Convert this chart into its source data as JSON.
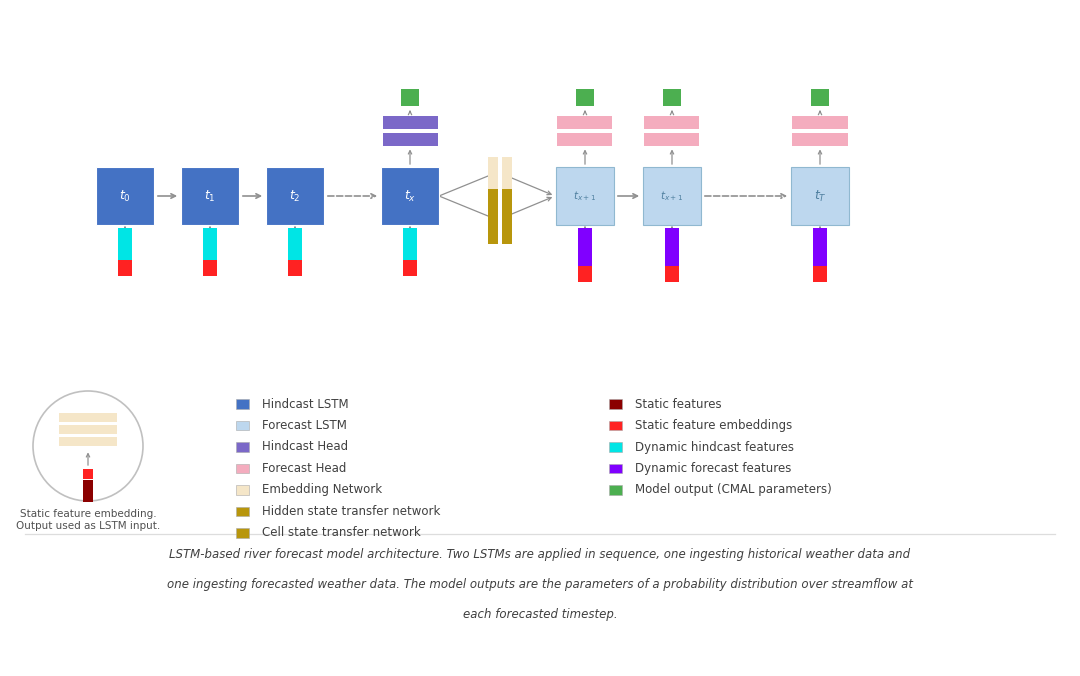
{
  "bg_color": "#ffffff",
  "hindcast_lstm_color": "#4472C4",
  "forecast_lstm_color": "#BDD7EE",
  "hindcast_head_color": "#7B68C8",
  "forecast_head_color": "#F4ACBE",
  "embedding_network_color": "#F5E6C8",
  "hidden_transfer_color": "#B8960C",
  "cell_transfer_color": "#B8960C",
  "static_features_color": "#8B0000",
  "static_embed_color": "#FF2222",
  "dynamic_hindcast_color": "#00E5E5",
  "dynamic_forecast_color": "#8000FF",
  "model_output_color": "#4CAF50",
  "arrow_color": "#909090",
  "text_color": "#404040",
  "caption_line1": "LSTM-based river forecast model architecture. Two LSTMs are applied in sequence, one ingesting historical weather data and",
  "caption_line2": "one ingesting forecasted weather data. The model outputs are the parameters of a probability distribution over streamflow at",
  "caption_line3": "each forecasted timestep."
}
